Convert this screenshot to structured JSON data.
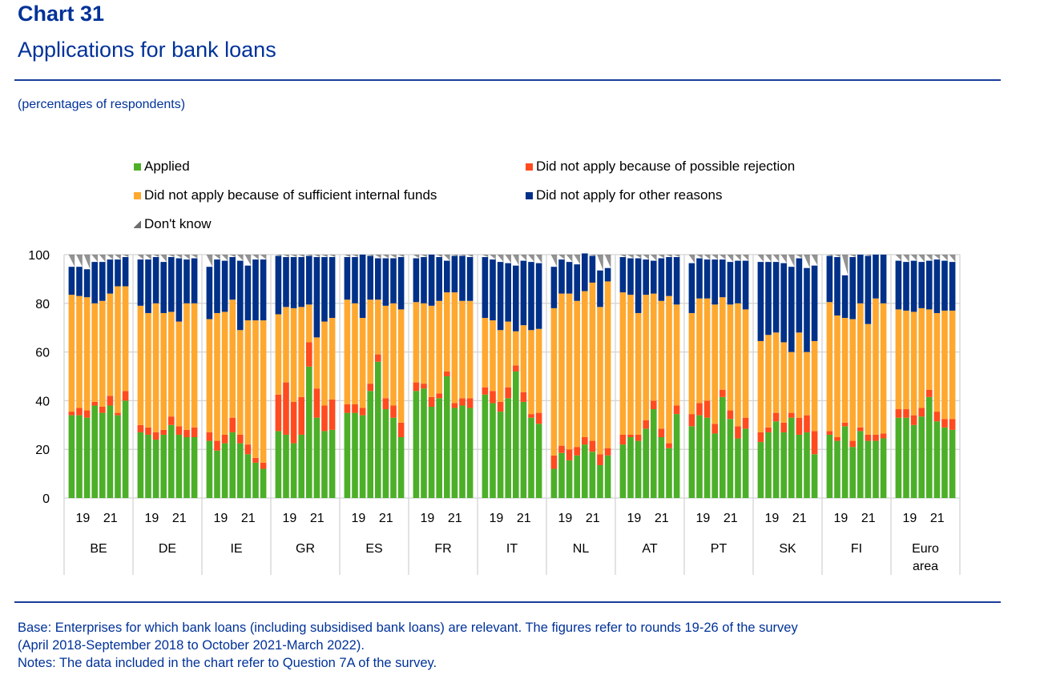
{
  "header": {
    "chart_number": "Chart 31",
    "title": "Applications for bank loans",
    "subtitle": "(percentages of respondents)"
  },
  "footer": {
    "base": "Base: Enterprises for which bank loans (including subsidised bank loans) are relevant. The figures refer to rounds 19-26 of the survey",
    "period": "(April 2018-September 2018 to October 2021-March 2022).",
    "notes": "Notes: The data included in the chart refer to Question 7A of the survey."
  },
  "colors": {
    "applied": "#4caf28",
    "rejection": "#ff4b1e",
    "internal": "#ffa82f",
    "other": "#003087",
    "dontknow": "#6e6e6e",
    "text_blue": "#003299",
    "grid": "#d4d4d4"
  },
  "chart_data": {
    "type": "bar",
    "stacked": true,
    "title": "Applications for bank loans",
    "ylabel": "percentages of respondents",
    "ylim": [
      0,
      100
    ],
    "yticks": [
      0,
      20,
      40,
      60,
      80,
      100
    ],
    "grid": true,
    "legend_position": "top",
    "legend": [
      {
        "key": "applied",
        "label": "Applied"
      },
      {
        "key": "rejection",
        "label": "Did not apply because of possible rejection"
      },
      {
        "key": "internal",
        "label": "Did not apply because of sufficient internal funds"
      },
      {
        "key": "other",
        "label": "Did not apply for other reasons"
      },
      {
        "key": "dontknow",
        "label": "Don't know"
      }
    ],
    "round_tick_labels": [
      "19",
      "21"
    ],
    "rounds": [
      19,
      20,
      21,
      22,
      23,
      24,
      25,
      26
    ],
    "groups": [
      {
        "label": "BE",
        "applied": [
          34,
          34,
          33,
          38,
          35,
          38,
          34,
          40
        ],
        "rejection": [
          1.5,
          3,
          3,
          1.5,
          2.5,
          4,
          1,
          4
        ],
        "internal": [
          48,
          46,
          46.5,
          40.5,
          43.5,
          42,
          52,
          43
        ],
        "other": [
          11.5,
          12,
          11.5,
          17,
          16,
          14,
          11,
          12
        ]
      },
      {
        "label": "DE",
        "applied": [
          27,
          26,
          24,
          26,
          30,
          26,
          25,
          25
        ],
        "rejection": [
          3,
          3,
          3,
          2,
          3.5,
          3.5,
          3,
          4
        ],
        "internal": [
          49,
          47,
          53,
          48,
          43,
          43,
          52,
          51
        ],
        "other": [
          19,
          22,
          19,
          21,
          22.5,
          26,
          18,
          18.5
        ]
      },
      {
        "label": "IE",
        "applied": [
          23.5,
          19.5,
          22.5,
          27,
          22.5,
          18,
          14.5,
          12
        ],
        "rejection": [
          3.5,
          4,
          3.5,
          6,
          3.5,
          4,
          2,
          2.5
        ],
        "internal": [
          46.5,
          52.5,
          50.5,
          48.5,
          43,
          51,
          56.5,
          58.5
        ],
        "other": [
          21.5,
          22,
          21,
          17.5,
          28.5,
          22.5,
          25,
          25
        ]
      },
      {
        "label": "GR",
        "applied": [
          27.5,
          26,
          22.5,
          26,
          54,
          33,
          27.5,
          28
        ],
        "rejection": [
          15,
          21.5,
          17,
          15.5,
          10,
          12,
          10.5,
          12.5
        ],
        "internal": [
          33,
          31,
          38.5,
          37,
          15.5,
          21,
          34.5,
          33.5
        ],
        "other": [
          24,
          20.5,
          21,
          20.5,
          20,
          33,
          26.5,
          25
        ]
      },
      {
        "label": "ES",
        "applied": [
          35,
          35,
          34,
          44,
          56,
          36.5,
          33,
          25
        ],
        "rejection": [
          3.5,
          3.5,
          3,
          3,
          3,
          4.5,
          5,
          6
        ],
        "internal": [
          43,
          41.5,
          37,
          34.5,
          22.5,
          38,
          42,
          46.5
        ],
        "other": [
          17.5,
          19,
          26,
          18,
          17,
          19.5,
          18.5,
          21.5
        ]
      },
      {
        "label": "FR",
        "applied": [
          44,
          45,
          37.5,
          41,
          50,
          37,
          38,
          37
        ],
        "rejection": [
          3.5,
          2,
          4,
          2,
          2,
          2,
          3,
          4
        ],
        "internal": [
          33,
          33,
          37.5,
          38,
          32.5,
          45.5,
          40,
          40
        ],
        "other": [
          18,
          19,
          21,
          18,
          13,
          15,
          18.5,
          18
        ]
      },
      {
        "label": "IT",
        "applied": [
          42.5,
          39,
          35.5,
          41,
          52,
          39.5,
          33,
          30.5
        ],
        "rejection": [
          3,
          5,
          4,
          4.5,
          2.5,
          4,
          1.5,
          4.5
        ],
        "internal": [
          28.5,
          29,
          29.5,
          27,
          14,
          27.5,
          34.5,
          34.5
        ],
        "other": [
          25,
          25,
          28,
          24,
          27,
          26.5,
          28,
          27
        ]
      },
      {
        "label": "NL",
        "applied": [
          12,
          18.5,
          15.5,
          17.5,
          22,
          19,
          13.5,
          17.5
        ],
        "rejection": [
          5.5,
          3,
          4.5,
          3.5,
          3,
          4.5,
          4.5,
          3
        ],
        "internal": [
          60.5,
          62.5,
          64,
          60,
          60,
          65,
          60.5,
          68.5
        ],
        "other": [
          17,
          14,
          13,
          15,
          15.5,
          11,
          15,
          5.5
        ]
      },
      {
        "label": "AT",
        "applied": [
          22,
          25,
          23.5,
          28.5,
          36.5,
          25,
          20.5,
          34.5
        ],
        "rejection": [
          4,
          1,
          2.5,
          3.5,
          3.5,
          3.5,
          2,
          3.5
        ],
        "internal": [
          58.5,
          57.5,
          50,
          51.5,
          44,
          52.5,
          60.5,
          41.5
        ],
        "other": [
          14.5,
          15,
          22.5,
          14.5,
          13.5,
          17.5,
          16,
          19.5
        ]
      },
      {
        "label": "PT",
        "applied": [
          29.5,
          34,
          33,
          26.5,
          41.5,
          32.5,
          24.5,
          28.5
        ],
        "rejection": [
          5,
          5,
          7,
          4,
          3,
          3.5,
          5,
          4.5
        ],
        "internal": [
          41.5,
          43,
          42,
          49,
          38,
          43.5,
          50.5,
          44.5
        ],
        "other": [
          20.5,
          16.5,
          16,
          18.5,
          15.5,
          17.5,
          17.5,
          20
        ]
      },
      {
        "label": "SK",
        "applied": [
          23,
          27,
          31.5,
          27,
          33,
          26,
          27,
          18
        ],
        "rejection": [
          4,
          2,
          3.5,
          4,
          2,
          7,
          7,
          9.5
        ],
        "internal": [
          37.5,
          38,
          33,
          33,
          25,
          35,
          26,
          37
        ],
        "other": [
          32.5,
          30,
          29,
          32.5,
          35,
          30.5,
          34.5,
          31
        ]
      },
      {
        "label": "FI",
        "applied": [
          26,
          23.5,
          29.5,
          21,
          27.5,
          23.5,
          23.5,
          24.5
        ],
        "rejection": [
          1.5,
          1.5,
          1.5,
          2.5,
          1.5,
          2.5,
          2.5,
          2
        ],
        "internal": [
          53,
          50,
          43,
          50,
          51,
          45.5,
          56,
          53.5
        ],
        "other": [
          19,
          24,
          17.5,
          25.5,
          20,
          28,
          18,
          20
        ]
      },
      {
        "label": "Euro area",
        "applied": [
          33,
          33,
          30,
          33.5,
          41.5,
          31.5,
          29,
          28
        ],
        "rejection": [
          3.5,
          3.5,
          4,
          3.5,
          3,
          4,
          3.5,
          4.5
        ],
        "internal": [
          41,
          40.5,
          42.5,
          41,
          33,
          40.5,
          44.5,
          44.5
        ],
        "other": [
          20,
          20,
          21,
          19,
          20,
          22,
          20.5,
          20
        ]
      }
    ]
  }
}
